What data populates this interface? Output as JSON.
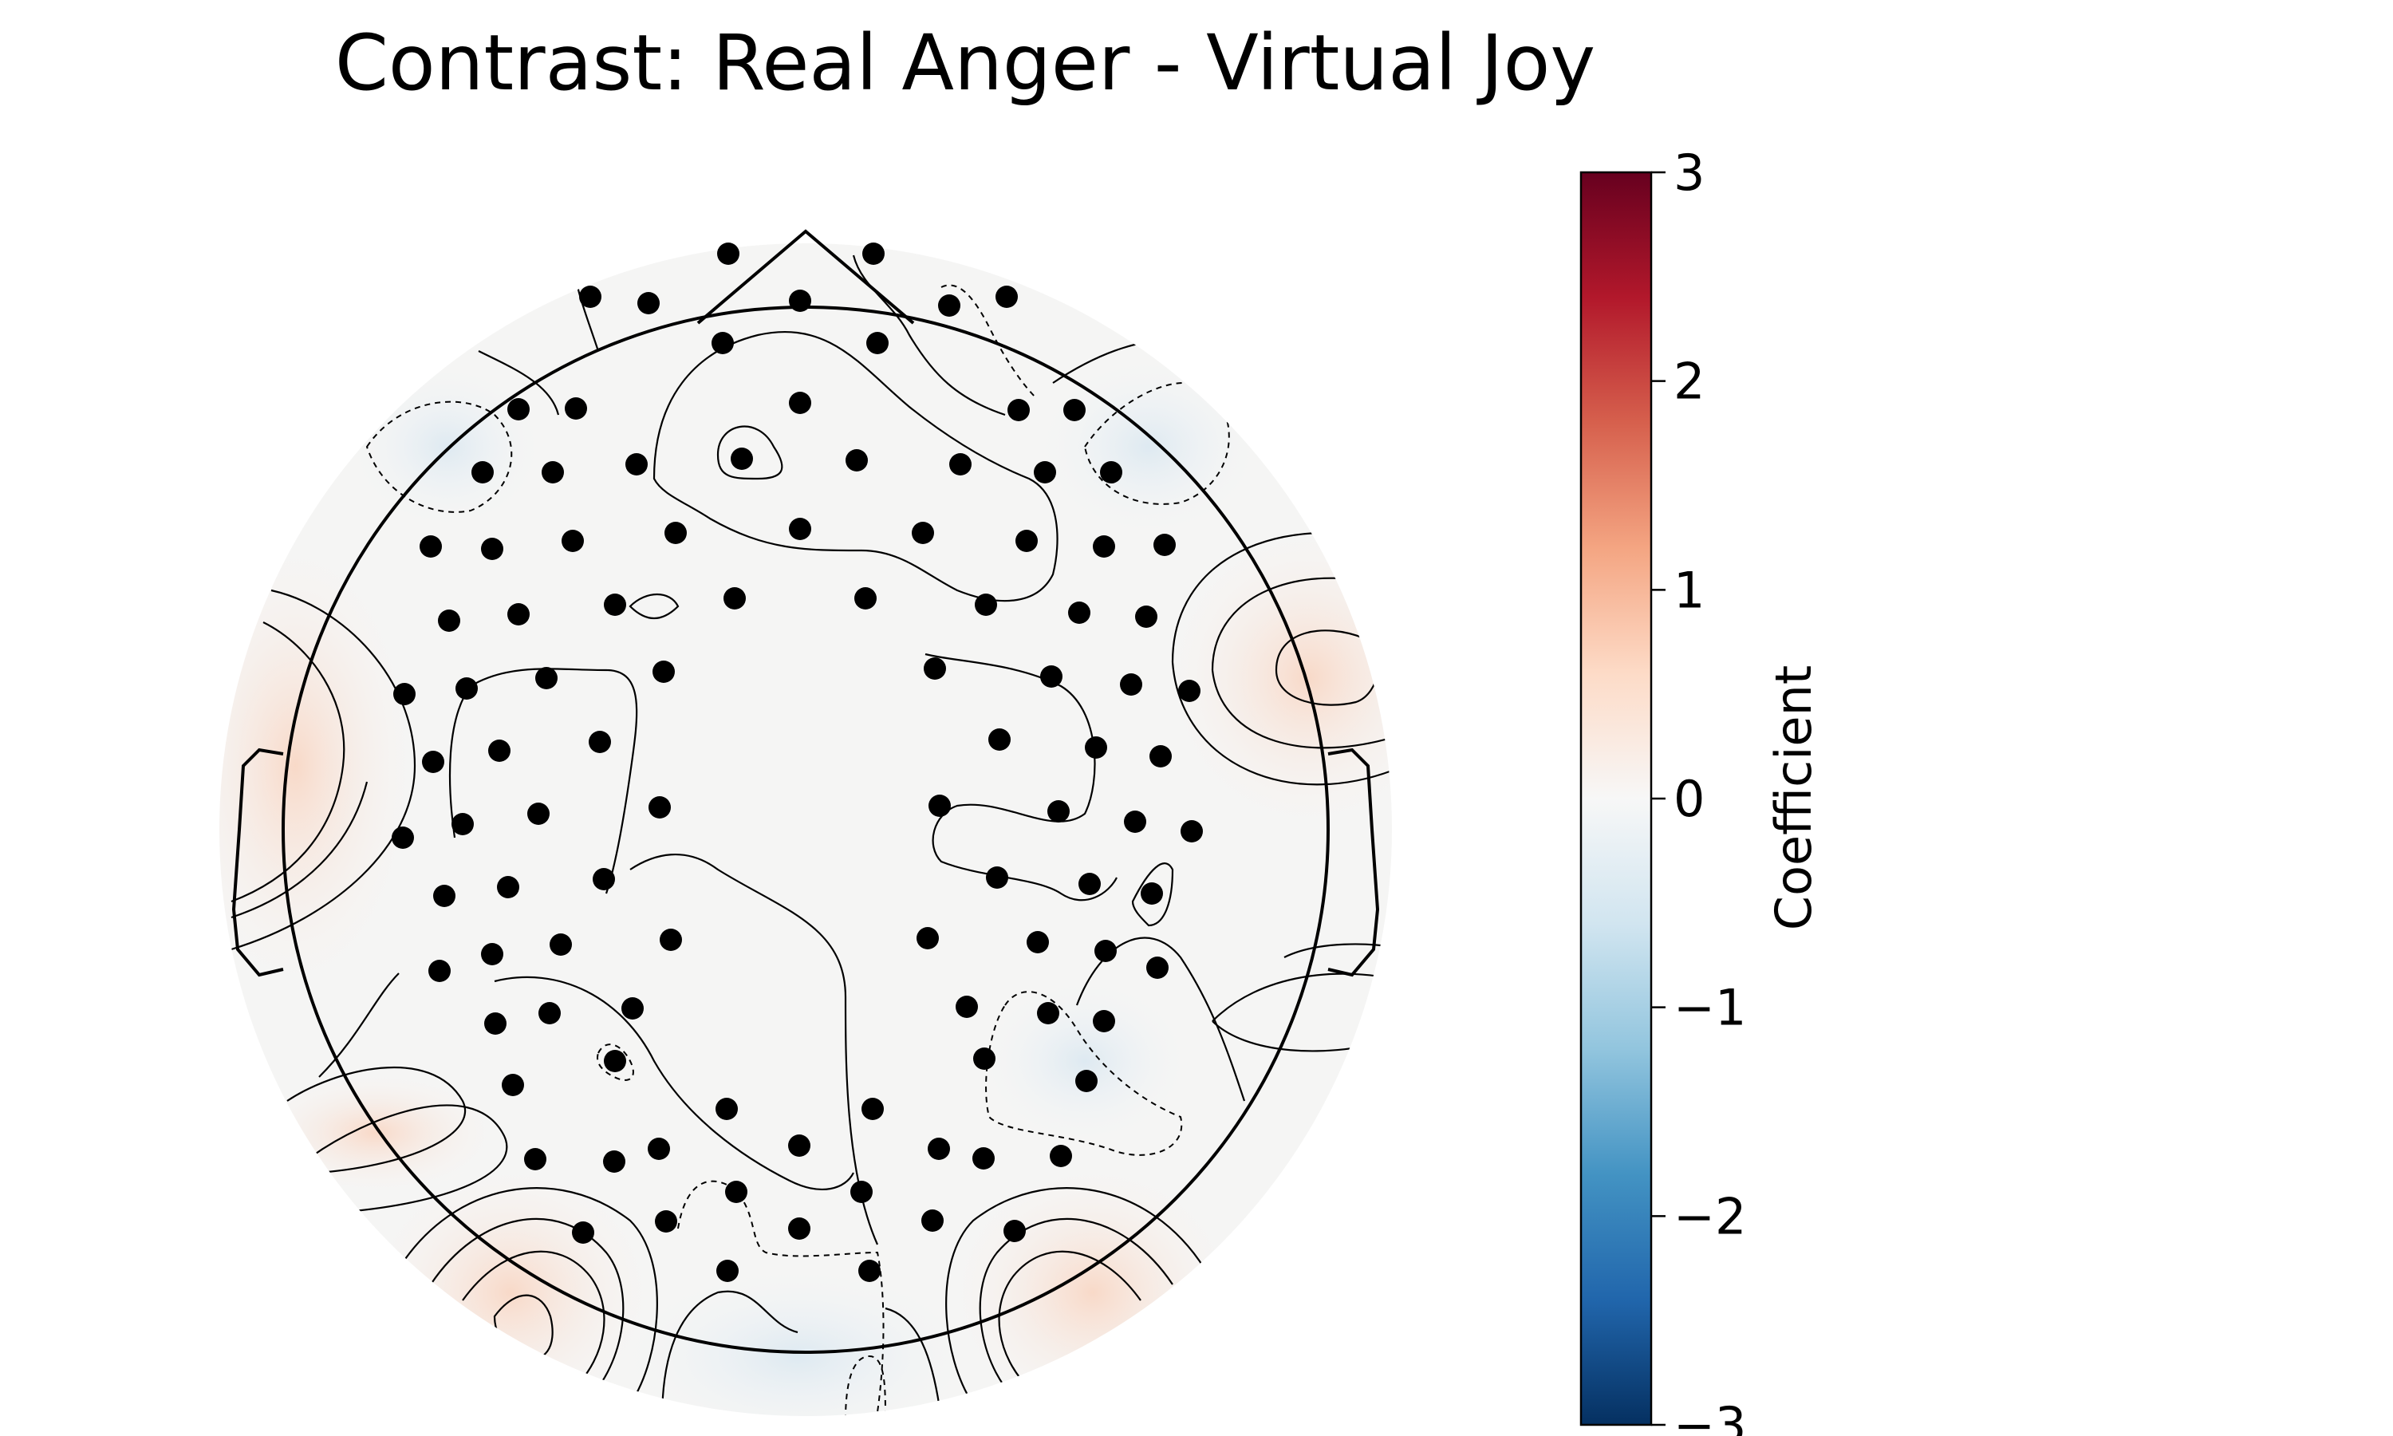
{
  "chart_data": {
    "type": "heatmap",
    "title": "Contrast: Real Anger - Virtual Joy",
    "colorbar": {
      "label": "Coefficient",
      "range": [
        -3,
        3
      ],
      "colormap": "RdBu_r",
      "ticks": [
        "3",
        "2",
        "1",
        "0",
        "−1",
        "−2",
        "−3"
      ],
      "tick_values": [
        3,
        2,
        1,
        0,
        -1,
        -2,
        -3
      ],
      "colors": [
        "#053061",
        "#2166ac",
        "#4393c3",
        "#92c5de",
        "#d1e5f0",
        "#f7f7f7",
        "#fddbc7",
        "#f4a582",
        "#d6604d",
        "#b2182b",
        "#67001f"
      ]
    },
    "topomap": {
      "value_range_shown": [
        -0.35,
        0.35
      ],
      "contour_style": "solid for positive, dashed for negative",
      "electrode_count": 128,
      "warm_regions": [
        "right temporal",
        "left temporal",
        "left occipital",
        "right occipital"
      ],
      "cool_regions": [
        "left frontal",
        "right frontal",
        "posterior midline"
      ]
    }
  }
}
